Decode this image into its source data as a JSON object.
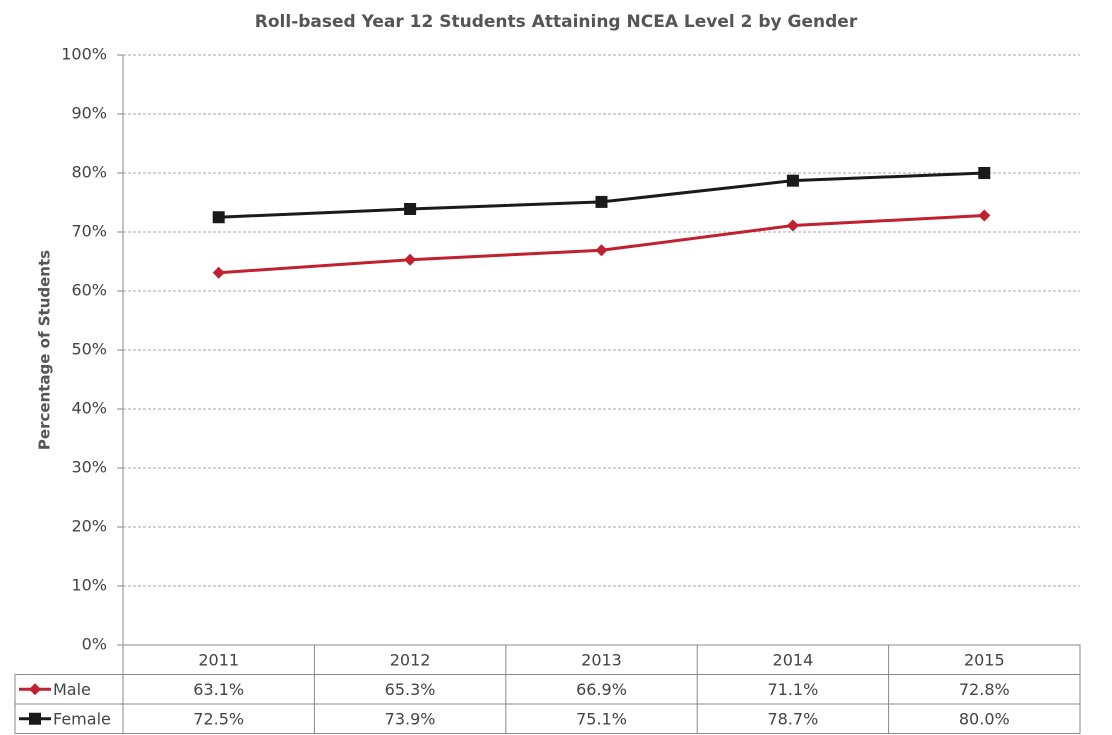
{
  "chart_data": {
    "type": "line",
    "title": "Roll-based Year 12 Students Attaining NCEA Level 2 by Gender",
    "y_label": "Percentage of Students",
    "categories": [
      "2011",
      "2012",
      "2013",
      "2014",
      "2015"
    ],
    "series": [
      {
        "name": "Male",
        "color": "#c0202f",
        "marker": "diamond",
        "values": [
          63.1,
          65.3,
          66.9,
          71.1,
          72.8
        ],
        "value_labels": [
          "63.1%",
          "65.3%",
          "66.9%",
          "71.1%",
          "72.8%"
        ]
      },
      {
        "name": "Female",
        "color": "#1a1a1a",
        "marker": "square",
        "values": [
          72.5,
          73.9,
          75.1,
          78.7,
          80.0
        ],
        "value_labels": [
          "72.5%",
          "73.9%",
          "75.1%",
          "78.7%",
          "80.0%"
        ]
      }
    ],
    "ylim": [
      0,
      100
    ],
    "yticks": [
      {
        "value": 0,
        "label": "0%"
      },
      {
        "value": 10,
        "label": "10%"
      },
      {
        "value": 20,
        "label": "20%"
      },
      {
        "value": 30,
        "label": "30%"
      },
      {
        "value": 40,
        "label": "40%"
      },
      {
        "value": 50,
        "label": "50%"
      },
      {
        "value": 60,
        "label": "60%"
      },
      {
        "value": 70,
        "label": "70%"
      },
      {
        "value": 80,
        "label": "80%"
      },
      {
        "value": 90,
        "label": "90%"
      },
      {
        "value": 100,
        "label": "100%"
      }
    ],
    "grid": true
  }
}
